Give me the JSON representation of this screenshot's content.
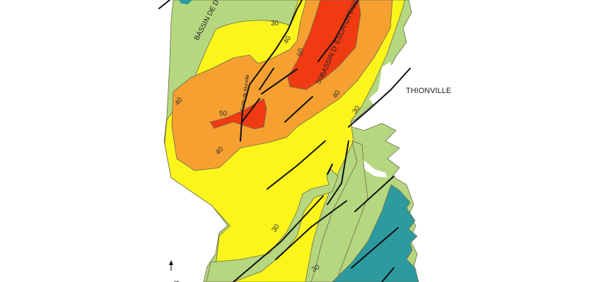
{
  "map": {
    "labels": {
      "basin_west": "BASSIN DE D",
      "basin_esch": "BASSIN D' ESCH-OTTANGE",
      "fault_murville": "Faille de Murville",
      "city": "THIONVILLE",
      "north": "N"
    },
    "contour_labels": [
      "30",
      "40",
      "50",
      "50",
      "40",
      "50",
      "40",
      "30",
      "40",
      "30",
      "30"
    ],
    "colors": {
      "green": "#b5d77f",
      "yellow": "#fbf51c",
      "orange": "#f5a030",
      "red": "#f03a12",
      "teal": "#2d9aa0",
      "fault": "#111111"
    }
  }
}
